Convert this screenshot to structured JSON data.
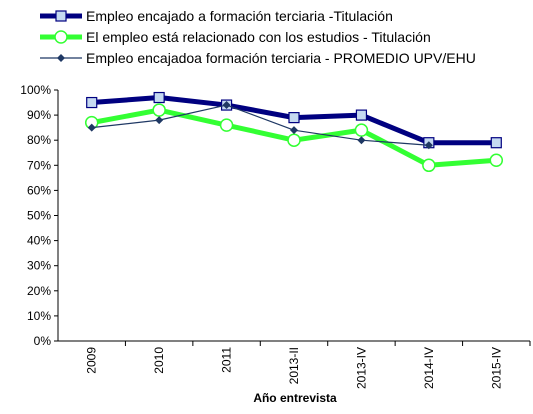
{
  "chart_data": {
    "type": "line",
    "x_label": "Año entrevista",
    "categories": [
      "2009",
      "2010",
      "2011",
      "2013-II",
      "2013-IV",
      "2014-IV",
      "2015-IV"
    ],
    "series": [
      {
        "name": "Empleo encajado a formación terciaria -Titulación",
        "color": "#000080",
        "marker": "square",
        "values": [
          95,
          97,
          94,
          89,
          90,
          79,
          79
        ]
      },
      {
        "name": "El empleo está relacionado con los estudios - Titulación",
        "color": "#33ff33",
        "marker": "circle",
        "values": [
          87,
          92,
          86,
          80,
          84,
          70,
          72
        ]
      },
      {
        "name": "Empleo encajadoa formación terciaria - PROMEDIO UPV/EHU",
        "color": "#1f3864",
        "marker": "diamond",
        "values": [
          85,
          88,
          94,
          84,
          80,
          78,
          null
        ]
      }
    ],
    "ylim": [
      0,
      100
    ],
    "yticks": [
      {
        "value": 0,
        "label": "0%"
      },
      {
        "value": 10,
        "label": "10%"
      },
      {
        "value": 20,
        "label": "20%"
      },
      {
        "value": 30,
        "label": "30%"
      },
      {
        "value": 40,
        "label": "40%"
      },
      {
        "value": 50,
        "label": "50%"
      },
      {
        "value": 60,
        "label": "60%"
      },
      {
        "value": 70,
        "label": "70%"
      },
      {
        "value": 80,
        "label": "80%"
      },
      {
        "value": 90,
        "label": "90%"
      },
      {
        "value": 100,
        "label": "100%"
      }
    ],
    "grid": false
  }
}
